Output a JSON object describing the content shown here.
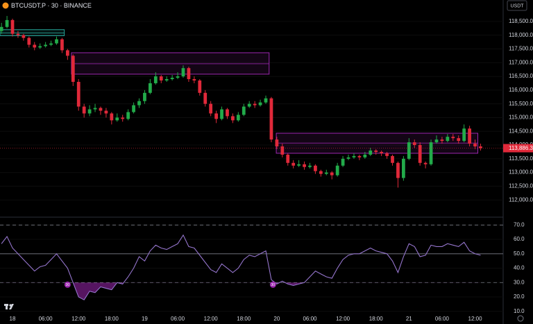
{
  "chart_data": [
    {
      "type": "candlestick",
      "title": "BTCUSDT.P · 30 · BINANCE",
      "currency": "USDT",
      "up_color": "#22ab4a",
      "down_color": "#e0293a",
      "xlim": [
        -2.27,
        89.1
      ],
      "ylim": [
        111450,
        119280
      ],
      "yticks": [
        {
          "value": 112000,
          "label": "112,000.0"
        },
        {
          "value": 112500,
          "label": "112,500.0"
        },
        {
          "value": 113000,
          "label": "113,000.0"
        },
        {
          "value": 113500,
          "label": "113,500.0"
        },
        {
          "value": 114000,
          "label": "114,000.0"
        },
        {
          "value": 114500,
          "label": "114,500.0"
        },
        {
          "value": 115000,
          "label": "115,000.0"
        },
        {
          "value": 115500,
          "label": "115,500.0"
        },
        {
          "value": 116000,
          "label": "116,000.0"
        },
        {
          "value": 116500,
          "label": "116,500.0"
        },
        {
          "value": 117000,
          "label": "117,000.0"
        },
        {
          "value": 117500,
          "label": "117,500.0"
        },
        {
          "value": 118000,
          "label": "118,000.0"
        },
        {
          "value": 118500,
          "label": "118,500.0"
        }
      ],
      "last_price": {
        "value": 113886.3,
        "label": "113,886.3"
      },
      "zones": [
        {
          "x": [
            -2.27,
            9.4
          ],
          "top": 118200,
          "mid": 118080,
          "bottom": 117980,
          "color": "#26a69a"
        },
        {
          "x": [
            10.7,
            46.6
          ],
          "top": 117360,
          "mid": 116960,
          "bottom": 116580,
          "color": "#9c27b0"
        },
        {
          "x": [
            47.9,
            84.5
          ],
          "top": 114430,
          "mid": 114070,
          "bottom": 113700,
          "color": "#9c27b0"
        }
      ],
      "candles": [
        [
          -2,
          118150,
          118450,
          118050,
          118300
        ],
        [
          -1,
          118300,
          118700,
          118250,
          118550
        ],
        [
          0,
          118550,
          118600,
          117950,
          118050
        ],
        [
          1,
          118050,
          118150,
          117900,
          118000
        ],
        [
          2,
          118000,
          118050,
          117800,
          117900
        ],
        [
          3,
          117900,
          117950,
          117550,
          117650
        ],
        [
          4,
          117650,
          117750,
          117450,
          117550
        ],
        [
          5,
          117550,
          117700,
          117500,
          117600
        ],
        [
          6,
          117600,
          117750,
          117550,
          117650
        ],
        [
          7,
          117650,
          117800,
          117600,
          117700
        ],
        [
          8,
          117700,
          117950,
          117650,
          117850
        ],
        [
          9,
          117850,
          117900,
          117350,
          117450
        ],
        [
          10,
          117450,
          117500,
          117100,
          117250
        ],
        [
          11,
          117250,
          117300,
          116150,
          116300
        ],
        [
          12,
          116300,
          116400,
          115250,
          115400
        ],
        [
          13,
          115400,
          115500,
          115000,
          115150
        ],
        [
          14,
          115150,
          115450,
          115050,
          115300
        ],
        [
          15,
          115300,
          115500,
          115200,
          115350
        ],
        [
          16,
          115350,
          115400,
          115100,
          115250
        ],
        [
          17,
          115250,
          115350,
          115000,
          115150
        ],
        [
          18,
          115150,
          115200,
          114750,
          114900
        ],
        [
          19,
          114900,
          115150,
          114850,
          115000
        ],
        [
          20,
          115000,
          115100,
          114850,
          114950
        ],
        [
          21,
          114950,
          115300,
          114900,
          115200
        ],
        [
          22,
          115200,
          115550,
          115150,
          115450
        ],
        [
          23,
          115450,
          115700,
          115350,
          115600
        ],
        [
          24,
          115600,
          116000,
          115500,
          115900
        ],
        [
          25,
          115900,
          116400,
          115850,
          116250
        ],
        [
          26,
          116250,
          116650,
          116200,
          116500
        ],
        [
          27,
          116500,
          116550,
          116250,
          116350
        ],
        [
          28,
          116350,
          116500,
          116300,
          116400
        ],
        [
          29,
          116400,
          116550,
          116350,
          116450
        ],
        [
          30,
          116450,
          116650,
          116400,
          116500
        ],
        [
          31,
          116500,
          116900,
          116450,
          116800
        ],
        [
          32,
          116800,
          116850,
          116300,
          116400
        ],
        [
          33,
          116400,
          116500,
          116250,
          116350
        ],
        [
          34,
          116350,
          116400,
          115800,
          115900
        ],
        [
          35,
          115900,
          116000,
          115400,
          115500
        ],
        [
          36,
          115500,
          115600,
          115050,
          115150
        ],
        [
          37,
          115150,
          115250,
          114800,
          114950
        ],
        [
          38,
          114950,
          115400,
          114900,
          115300
        ],
        [
          39,
          115300,
          115350,
          114950,
          115050
        ],
        [
          40,
          115050,
          115150,
          114800,
          114900
        ],
        [
          41,
          114900,
          115200,
          114850,
          115100
        ],
        [
          42,
          115100,
          115500,
          115050,
          115400
        ],
        [
          43,
          115400,
          115600,
          115350,
          115500
        ],
        [
          44,
          115500,
          115600,
          115350,
          115450
        ],
        [
          45,
          115450,
          115650,
          115400,
          115550
        ],
        [
          46,
          115550,
          115800,
          115500,
          115700
        ],
        [
          47,
          115700,
          115750,
          114100,
          114200
        ],
        [
          48,
          114200,
          114300,
          113850,
          113950
        ],
        [
          49,
          113950,
          114050,
          113550,
          113650
        ],
        [
          50,
          113650,
          113700,
          113250,
          113350
        ],
        [
          51,
          113350,
          113450,
          113150,
          113250
        ],
        [
          52,
          113250,
          113450,
          113200,
          113300
        ],
        [
          53,
          113300,
          113400,
          113100,
          113200
        ],
        [
          54,
          113200,
          113350,
          113150,
          113250
        ],
        [
          55,
          113250,
          113300,
          112950,
          113050
        ],
        [
          56,
          113050,
          113100,
          112850,
          112950
        ],
        [
          57,
          112950,
          113100,
          112900,
          113000
        ],
        [
          58,
          113000,
          113050,
          112750,
          112900
        ],
        [
          59,
          112900,
          113350,
          112850,
          113250
        ],
        [
          60,
          113250,
          113600,
          113200,
          113500
        ],
        [
          61,
          113500,
          113650,
          113450,
          113550
        ],
        [
          62,
          113550,
          113700,
          113500,
          113600
        ],
        [
          63,
          113600,
          113650,
          113450,
          113550
        ],
        [
          64,
          113550,
          113750,
          113500,
          113650
        ],
        [
          65,
          113650,
          113900,
          113600,
          113800
        ],
        [
          66,
          113800,
          113850,
          113650,
          113750
        ],
        [
          67,
          113750,
          113800,
          113600,
          113700
        ],
        [
          68,
          113700,
          113750,
          113500,
          113600
        ],
        [
          69,
          113600,
          113650,
          113250,
          113350
        ],
        [
          70,
          113350,
          113400,
          112450,
          112800
        ],
        [
          71,
          112800,
          113600,
          112700,
          113500
        ],
        [
          72,
          113500,
          114250,
          113450,
          114100
        ],
        [
          73,
          114100,
          114200,
          113900,
          114000
        ],
        [
          74,
          114000,
          114100,
          113250,
          113350
        ],
        [
          75,
          113350,
          113400,
          113150,
          113300
        ],
        [
          76,
          113300,
          114200,
          113250,
          114100
        ],
        [
          77,
          114100,
          114350,
          114050,
          114200
        ],
        [
          78,
          114200,
          114300,
          114050,
          114150
        ],
        [
          79,
          114150,
          114400,
          114100,
          114300
        ],
        [
          80,
          114300,
          114400,
          114150,
          114250
        ],
        [
          81,
          114250,
          114350,
          114050,
          114150
        ],
        [
          82,
          114150,
          114750,
          114100,
          114600
        ],
        [
          83,
          114600,
          114700,
          113950,
          114050
        ],
        [
          84,
          114050,
          114200,
          113850,
          113950
        ],
        [
          85,
          113950,
          114050,
          113800,
          113886.3
        ]
      ]
    },
    {
      "type": "line",
      "color": "#9575cd",
      "fill_color": "#9c27b0",
      "xlim": [
        -2.27,
        89.1
      ],
      "ylim": [
        7,
        74
      ],
      "xticks": [
        {
          "value": 0,
          "label": "18"
        },
        {
          "value": 6,
          "label": "06:00"
        },
        {
          "value": 12,
          "label": "12:00"
        },
        {
          "value": 18,
          "label": "18:00"
        },
        {
          "value": 24,
          "label": "19"
        },
        {
          "value": 30,
          "label": "06:00"
        },
        {
          "value": 36,
          "label": "12:00"
        },
        {
          "value": 42,
          "label": "18:00"
        },
        {
          "value": 48,
          "label": "20"
        },
        {
          "value": 54,
          "label": "06:00"
        },
        {
          "value": 60,
          "label": "12:00"
        },
        {
          "value": 66,
          "label": "18:00"
        },
        {
          "value": 72,
          "label": "21"
        },
        {
          "value": 78,
          "label": "06:00"
        },
        {
          "value": 84,
          "label": "12:00"
        }
      ],
      "yticks": [
        {
          "value": 10,
          "label": "10.0"
        },
        {
          "value": 20,
          "label": "20.0"
        },
        {
          "value": 30,
          "label": "30.0"
        },
        {
          "value": 40,
          "label": "40.0"
        },
        {
          "value": 50,
          "label": "50.0"
        },
        {
          "value": 60,
          "label": "60.0"
        },
        {
          "value": 70,
          "label": "70.0"
        }
      ],
      "levels": [
        70,
        50,
        30
      ],
      "x": [
        -2,
        -1,
        0,
        1,
        2,
        3,
        4,
        5,
        6,
        7,
        8,
        9,
        10,
        11,
        12,
        13,
        14,
        15,
        16,
        17,
        18,
        19,
        20,
        21,
        22,
        23,
        24,
        25,
        26,
        27,
        28,
        29,
        30,
        31,
        32,
        33,
        34,
        35,
        36,
        37,
        38,
        39,
        40,
        41,
        42,
        43,
        44,
        45,
        46,
        47,
        48,
        49,
        50,
        51,
        52,
        53,
        54,
        55,
        56,
        57,
        58,
        59,
        60,
        61,
        62,
        63,
        64,
        65,
        66,
        67,
        68,
        69,
        70,
        71,
        72,
        73,
        74,
        75,
        76,
        77,
        78,
        79,
        80,
        81,
        82,
        83,
        84,
        85
      ],
      "values": [
        57,
        62,
        54,
        50,
        46,
        42,
        38,
        41,
        42,
        46,
        50,
        45,
        40,
        30,
        20,
        18,
        24,
        23,
        27,
        26,
        25,
        30,
        29,
        34,
        40,
        48,
        45,
        52,
        56,
        54,
        53,
        55,
        57,
        63,
        55,
        54,
        49,
        44,
        39,
        37,
        43,
        40,
        37,
        40,
        46,
        49,
        48,
        50,
        52,
        32,
        29,
        31,
        29,
        28,
        29,
        30,
        34,
        38,
        36,
        34,
        33,
        40,
        46,
        49,
        50,
        50,
        52,
        54,
        52,
        51,
        50,
        45,
        37,
        48,
        57,
        55,
        48,
        49,
        56,
        55,
        55,
        57,
        56,
        55,
        58,
        52,
        50,
        49
      ],
      "annotations": [
        {
          "x": 10,
          "value": 30,
          "label": "30"
        },
        {
          "x": 47.3,
          "value": 30,
          "label": "30"
        }
      ]
    }
  ]
}
